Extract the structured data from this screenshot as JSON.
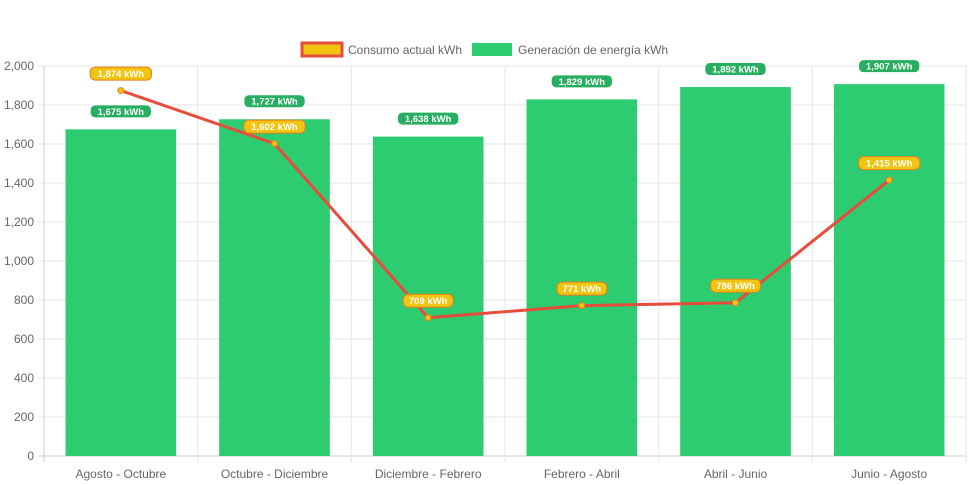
{
  "chart_data": {
    "type": "bar",
    "categories": [
      "Agosto - Octubre",
      "Octubre - Diciembre",
      "Diciembre - Febrero",
      "Febrero - Abril",
      "Abril - Junio",
      "Junio - Agosto"
    ],
    "series": [
      {
        "name": "Consumo actual kWh",
        "type": "line",
        "values": [
          1874,
          1602,
          709,
          771,
          786,
          1415
        ],
        "labels": [
          "1,874 kWh",
          "1,602 kWh",
          "709 kWh",
          "771 kWh",
          "786 kWh",
          "1,415 kWh"
        ],
        "color": "#e74c3c",
        "fill": "#f1c40f"
      },
      {
        "name": "Generación de energía kWh",
        "type": "bar",
        "values": [
          1675,
          1727,
          1638,
          1829,
          1892,
          1907
        ],
        "labels": [
          "1,675 kWh",
          "1,727 kWh",
          "1,638 kWh",
          "1,829 kWh",
          "1,892 kWh",
          "1,907 kWh"
        ],
        "color": "#2ecc71"
      }
    ],
    "yticks": [
      "0",
      "200",
      "400",
      "600",
      "800",
      "1,000",
      "1,200",
      "1,400",
      "1,600",
      "1,800",
      "2,000"
    ],
    "ylim": [
      0,
      2000
    ],
    "grid": true,
    "legend": "top-center"
  }
}
